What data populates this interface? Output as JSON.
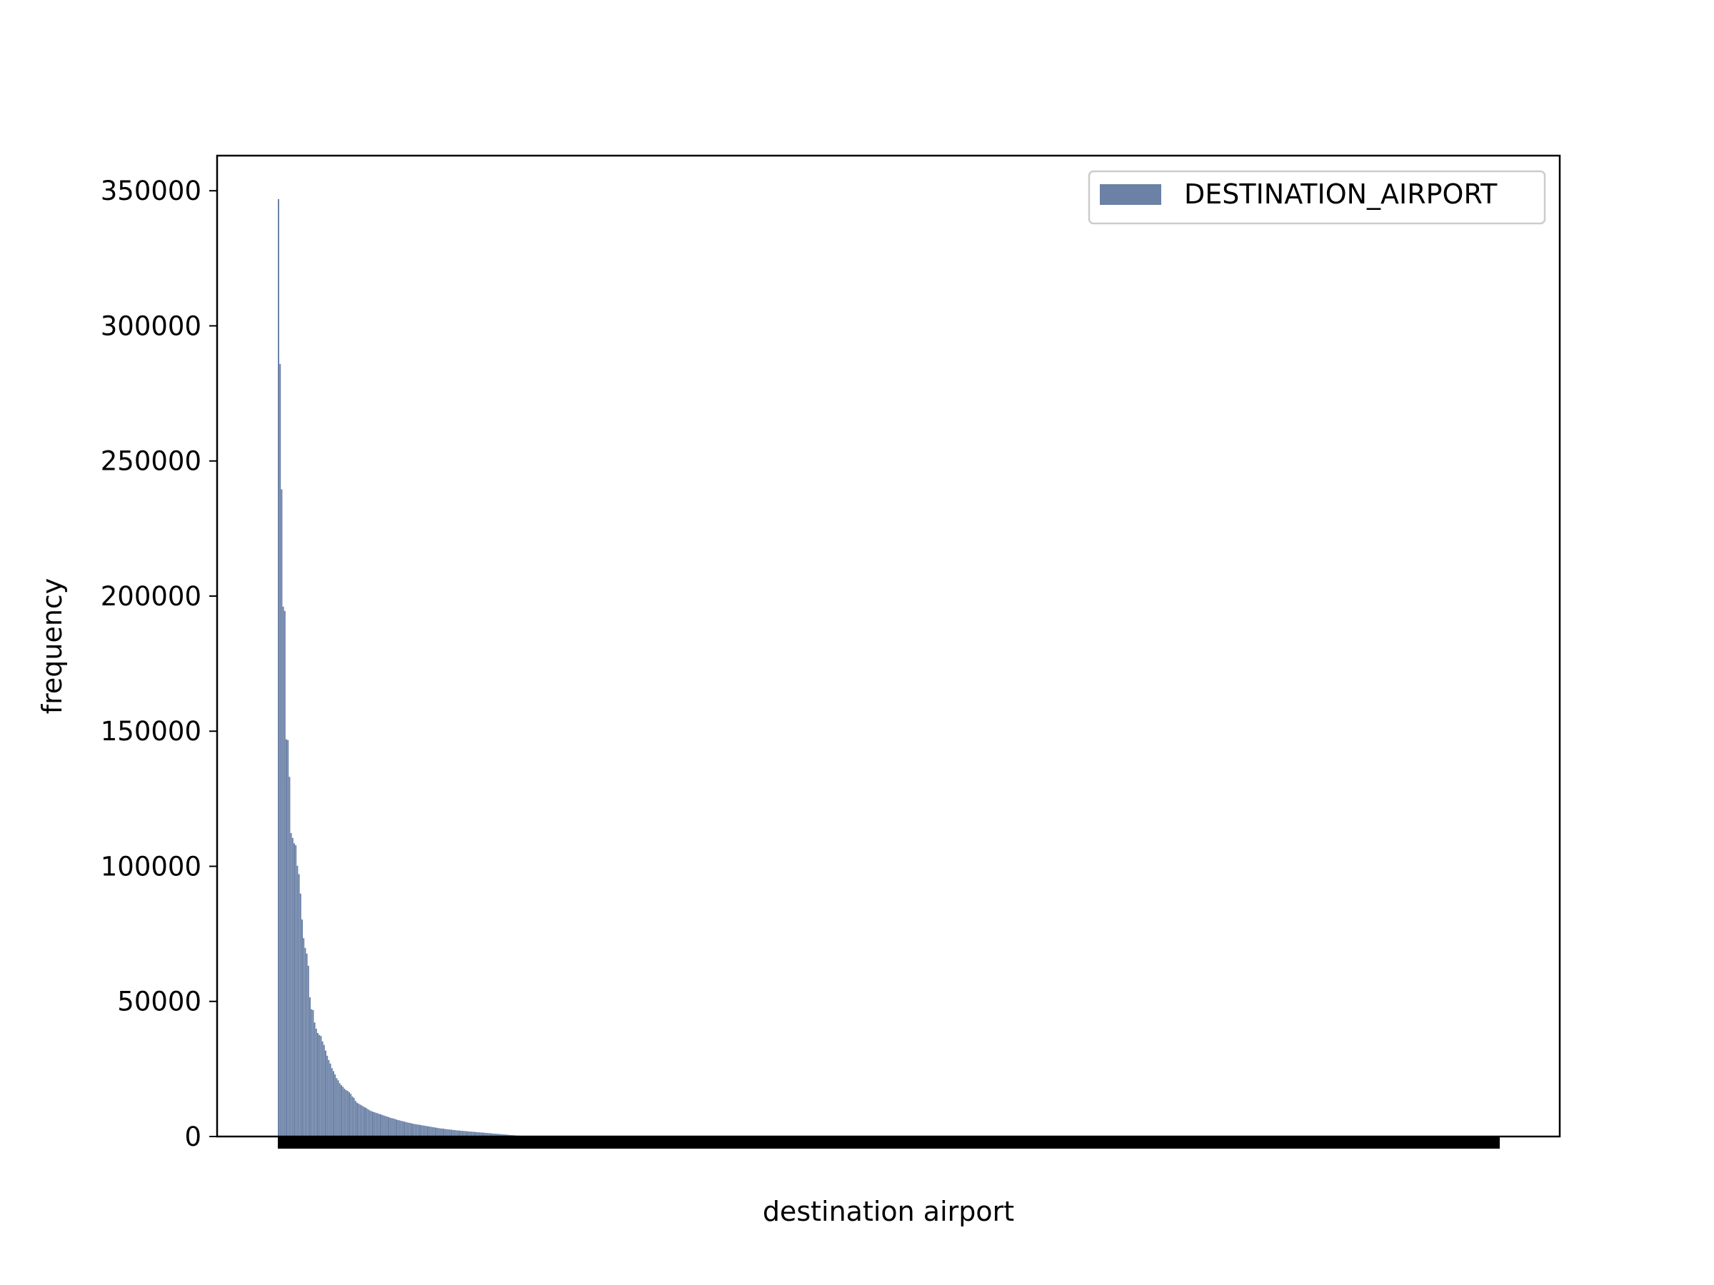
{
  "chart_data": {
    "type": "bar",
    "xlabel": "destination airport",
    "ylabel": "frequency",
    "ylim": [
      0,
      363000
    ],
    "yticks": [
      0,
      50000,
      100000,
      150000,
      200000,
      250000,
      300000,
      350000
    ],
    "ytick_labels": [
      "0",
      "50000",
      "100000",
      "150000",
      "200000",
      "250000",
      "300000",
      "350000"
    ],
    "grid": false,
    "legend": {
      "position": "top-right",
      "entries": [
        "DESTINATION_AIRPORT"
      ]
    },
    "colors": {
      "bar": "#6b81a6",
      "axes": "#000000",
      "tick_labels": "#000000"
    },
    "series": [
      {
        "name": "DESTINATION_AIRPORT",
        "values": [
          346900,
          285900,
          239500,
          196100,
          194500,
          147000,
          146700,
          133100,
          112300,
          110500,
          108500,
          107800,
          100200,
          97100,
          89900,
          80300,
          73400,
          69800,
          67700,
          63200,
          51500,
          47100,
          46800,
          42200,
          39900,
          38300,
          37600,
          37200,
          35200,
          33900,
          31800,
          29900,
          28300,
          27000,
          25300,
          24200,
          23000,
          21600,
          20800,
          19700,
          19000,
          18400,
          17700,
          17200,
          16900,
          16400,
          15800,
          14800,
          14300,
          13200,
          12500,
          12200,
          11800,
          11500,
          11100,
          10800,
          10500,
          10100,
          9700,
          9400,
          9200,
          9000,
          8800,
          8600,
          8400,
          8200,
          8000,
          7800,
          7600,
          7400,
          7200,
          7000,
          6800,
          6700,
          6500,
          6300,
          6100,
          6000,
          5800,
          5700,
          5500,
          5400,
          5200,
          5100,
          5000,
          4800,
          4700,
          4600,
          4500,
          4400,
          4300,
          4200,
          4100,
          4000,
          3900,
          3800,
          3700,
          3600,
          3500,
          3400,
          3300,
          3200,
          3100,
          3000,
          2950,
          2900,
          2800,
          2700,
          2650,
          2600,
          2500,
          2450,
          2400,
          2300,
          2250,
          2200,
          2150,
          2100,
          2050,
          2000,
          1950,
          1900,
          1850,
          1800,
          1750,
          1700,
          1650,
          1600,
          1550,
          1500,
          1450,
          1400,
          1350,
          1300,
          1250,
          1200,
          1150,
          1100,
          1050,
          1000,
          950,
          900,
          850,
          800,
          750,
          700,
          650,
          600,
          550,
          500,
          450,
          400,
          350,
          300
        ]
      }
    ]
  }
}
